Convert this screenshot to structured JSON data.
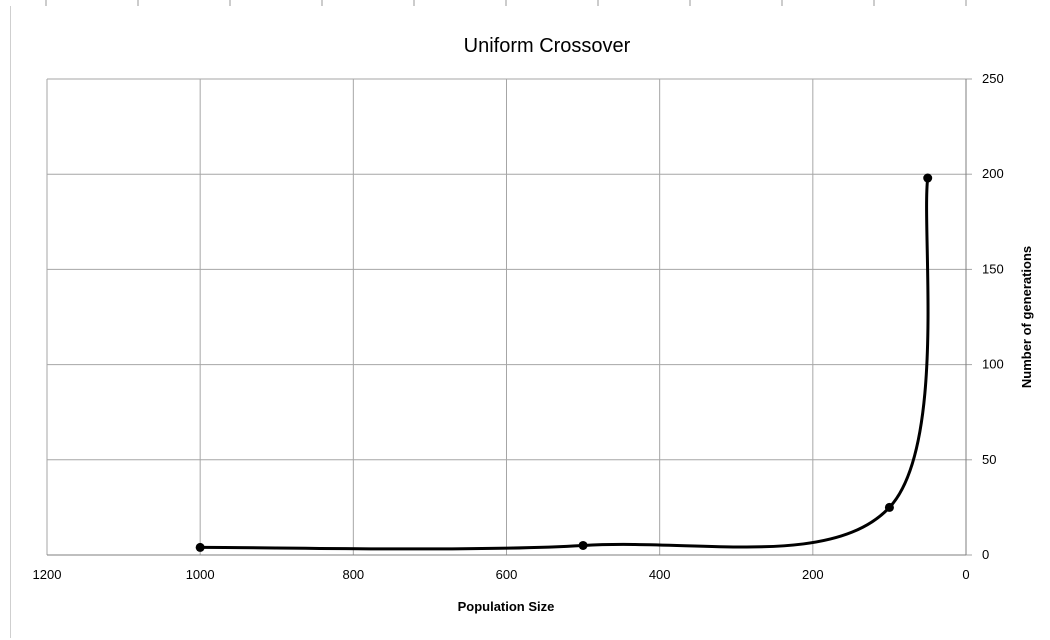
{
  "chart_data": {
    "type": "line",
    "title": "Uniform Crossover",
    "xlabel": "Population Size",
    "ylabel": "Number of generations",
    "x_reversed": true,
    "y_axis_side": "right",
    "xlim": [
      0,
      1200
    ],
    "ylim": [
      0,
      250
    ],
    "x_ticks": [
      1200,
      1000,
      800,
      600,
      400,
      200,
      0
    ],
    "y_ticks": [
      0,
      50,
      100,
      150,
      200,
      250
    ],
    "grid": true,
    "legend": "none",
    "line_style": "smooth",
    "series": [
      {
        "points": [
          {
            "x": 1000,
            "y": 4
          },
          {
            "x": 500,
            "y": 5
          },
          {
            "x": 100,
            "y": 25
          },
          {
            "x": 50,
            "y": 198
          }
        ]
      }
    ],
    "colors": {
      "line": "#000000",
      "grid": "#a6a6a6",
      "marker": "#000000"
    }
  }
}
